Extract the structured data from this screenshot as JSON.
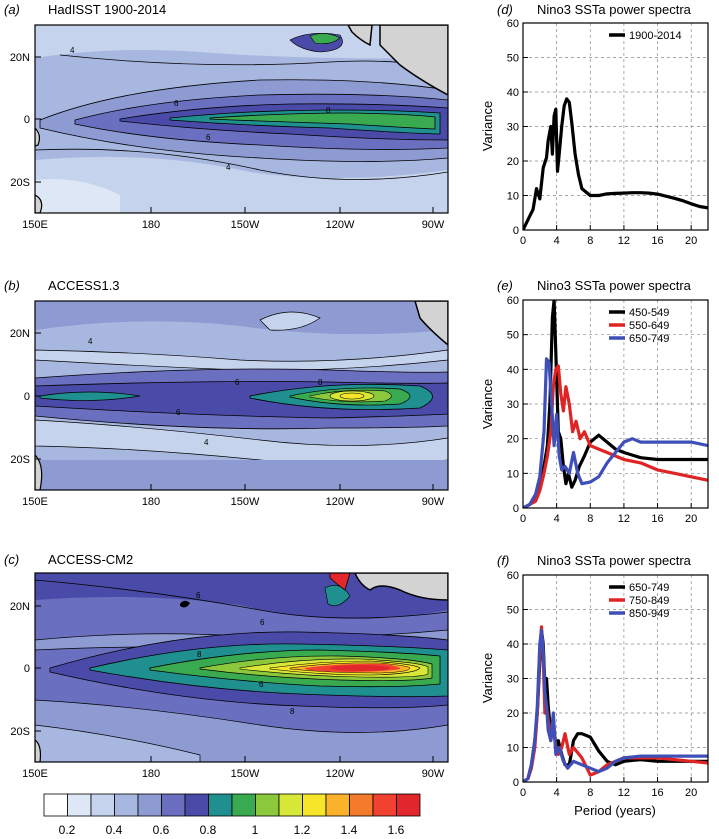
{
  "maps": [
    {
      "panel": "(a)",
      "title": "HadISST 1900-2014",
      "lon_ticks": [
        "150E",
        "180",
        "150W",
        "120W",
        "90W"
      ],
      "lat_ticks": [
        "20N",
        "0",
        "20S"
      ],
      "contour_labels": [
        "6",
        "6",
        "8",
        "4",
        "4"
      ],
      "style": "weak"
    },
    {
      "panel": "(b)",
      "title": "ACCESS1.3",
      "lon_ticks": [
        "150E",
        "180",
        "150W",
        "120W",
        "90W"
      ],
      "lat_ticks": [
        "20N",
        "0",
        "20S"
      ],
      "contour_labels": [
        "4",
        "6",
        "6",
        "8",
        "4"
      ],
      "style": "medium"
    },
    {
      "panel": "(c)",
      "title": "ACCESS-CM2",
      "lon_ticks": [
        "150E",
        "180",
        "150W",
        "120W",
        "90W"
      ],
      "lat_ticks": [
        "20N",
        "0",
        "20S"
      ],
      "contour_labels": [
        "6",
        "8",
        "6",
        "6",
        "8"
      ],
      "style": "strong"
    }
  ],
  "colorbar": {
    "tick_labels": [
      "0.2",
      "0.4",
      "0.6",
      "0.8",
      "1",
      "1.2",
      "1.4",
      "1.6"
    ],
    "colors": [
      "#ffffff",
      "#dde7f5",
      "#c5d3ec",
      "#a8b7e0",
      "#8e9ad2",
      "#6a70bf",
      "#4a4aa8",
      "#1f8f8f",
      "#3aaa50",
      "#8cc83c",
      "#d8e838",
      "#f6e528",
      "#f9b22a",
      "#f47a2c",
      "#f14130",
      "#e2272c"
    ]
  },
  "chart_data": [
    {
      "type": "line",
      "panel": "(d)",
      "title": "Nino3 SSTa power spectra",
      "xlabel": "",
      "ylabel": "Variance",
      "xlim": [
        0,
        22
      ],
      "ylim": [
        0,
        60
      ],
      "x_ticks": [
        "0",
        "4",
        "8",
        "12",
        "16",
        "20"
      ],
      "y_ticks": [
        "0",
        "10",
        "20",
        "30",
        "40",
        "50",
        "60"
      ],
      "legend_position": "top-right",
      "series": [
        {
          "name": "1900-2014",
          "color": "#000000",
          "x": [
            0,
            0.8,
            1.2,
            1.6,
            2.0,
            2.4,
            2.8,
            3.0,
            3.3,
            3.5,
            3.7,
            3.9,
            4.1,
            4.3,
            4.6,
            4.9,
            5.2,
            5.5,
            5.8,
            6.2,
            6.6,
            7.0,
            7.5,
            8.0,
            9,
            10,
            11,
            12,
            13,
            14,
            15,
            16,
            17,
            18,
            19,
            20,
            21,
            22
          ],
          "y": [
            0,
            4,
            6,
            12,
            9,
            18,
            21,
            26,
            30,
            22,
            33,
            35,
            17,
            22,
            30,
            36,
            38,
            37,
            31,
            22,
            16,
            12,
            11,
            10,
            10,
            10.5,
            10.6,
            10.7,
            10.8,
            10.8,
            10.7,
            10.4,
            9.8,
            9.2,
            8.5,
            7.6,
            6.8,
            6.4
          ]
        }
      ]
    },
    {
      "type": "line",
      "panel": "(e)",
      "title": "Nino3 SSTa power spectra",
      "xlabel": "",
      "ylabel": "Variance",
      "xlim": [
        0,
        22
      ],
      "ylim": [
        0,
        60
      ],
      "x_ticks": [
        "0",
        "4",
        "8",
        "12",
        "16",
        "20"
      ],
      "y_ticks": [
        "0",
        "10",
        "20",
        "30",
        "40",
        "50",
        "60"
      ],
      "legend_position": "top-right",
      "series": [
        {
          "name": "450-549",
          "color": "#000000",
          "x": [
            0,
            0.8,
            1.5,
            2.0,
            2.5,
            2.9,
            3.2,
            3.5,
            3.7,
            3.9,
            4.2,
            4.5,
            4.8,
            5.1,
            5.4,
            5.8,
            6.2,
            6.7,
            7.3,
            8,
            9,
            10,
            11,
            12,
            14,
            16,
            18,
            20,
            22
          ],
          "y": [
            0,
            1,
            3,
            7,
            12,
            18,
            30,
            55,
            60,
            45,
            22,
            20,
            12,
            7,
            10,
            6,
            8,
            12,
            15,
            19,
            21,
            19,
            17,
            16,
            14.5,
            14,
            14,
            14,
            14
          ]
        },
        {
          "name": "550-649",
          "color": "#e02424",
          "x": [
            0,
            0.8,
            1.5,
            2.0,
            2.5,
            2.9,
            3.3,
            3.6,
            3.9,
            4.2,
            4.5,
            4.8,
            5.1,
            5.5,
            5.9,
            6.3,
            6.8,
            7.3,
            8,
            9,
            10,
            11,
            12,
            14,
            16,
            18,
            20,
            22
          ],
          "y": [
            0,
            1,
            2,
            5,
            10,
            15,
            22,
            35,
            40,
            41,
            33,
            28,
            35,
            30,
            22,
            25,
            20,
            22,
            18,
            17,
            16,
            15,
            14,
            13,
            11,
            10,
            9,
            8
          ]
        },
        {
          "name": "650-749",
          "color": "#3f4fb8",
          "x": [
            0,
            0.8,
            1.5,
            2.0,
            2.5,
            2.8,
            3.1,
            3.4,
            3.7,
            4.0,
            4.3,
            4.6,
            5.0,
            5.5,
            6.0,
            6.5,
            7,
            8,
            9,
            10,
            11,
            12,
            13,
            14,
            16,
            18,
            20,
            22
          ],
          "y": [
            0,
            1,
            4,
            9,
            22,
            43,
            42,
            30,
            18,
            27,
            15,
            11,
            12,
            10,
            16,
            10,
            7,
            7.5,
            9,
            13,
            16,
            19,
            20,
            19,
            19,
            19,
            19,
            18
          ]
        }
      ]
    },
    {
      "type": "line",
      "panel": "(f)",
      "title": "Nino3 SSTa power spectra",
      "xlabel": "Period (years)",
      "ylabel": "Variance",
      "xlim": [
        0,
        22
      ],
      "ylim": [
        0,
        60
      ],
      "x_ticks": [
        "0",
        "4",
        "8",
        "12",
        "16",
        "20"
      ],
      "y_ticks": [
        "0",
        "10",
        "20",
        "30",
        "40",
        "50",
        "60"
      ],
      "legend_position": "top-right",
      "series": [
        {
          "name": "650-749",
          "color": "#000000",
          "x": [
            0,
            0.6,
            1.0,
            1.4,
            1.7,
            2.0,
            2.2,
            2.4,
            2.6,
            2.8,
            3.0,
            3.3,
            3.6,
            3.9,
            4.2,
            4.6,
            5.0,
            5.5,
            6.0,
            6.5,
            7.0,
            8.0,
            9.0,
            10,
            11,
            12,
            14,
            16,
            18,
            20,
            22
          ],
          "y": [
            0,
            1,
            5,
            12,
            20,
            35,
            44,
            40,
            28,
            30,
            22,
            14,
            18,
            10,
            12,
            8,
            5,
            5,
            12,
            14,
            14,
            13,
            9,
            6,
            5,
            6,
            6.5,
            6,
            6,
            6,
            6
          ]
        },
        {
          "name": "750-849",
          "color": "#e02424",
          "x": [
            0,
            0.6,
            1.0,
            1.4,
            1.7,
            2.0,
            2.2,
            2.4,
            2.6,
            2.8,
            3.0,
            3.3,
            3.6,
            3.9,
            4.2,
            4.6,
            5.0,
            5.5,
            6.0,
            7.0,
            8,
            9,
            10,
            11,
            12,
            14,
            16,
            18,
            20,
            22
          ],
          "y": [
            0,
            1,
            4,
            10,
            20,
            38,
            45,
            36,
            20,
            22,
            18,
            12,
            16,
            10,
            8,
            10,
            14,
            8,
            10,
            7,
            2,
            3,
            5,
            6,
            7,
            7,
            7,
            6.5,
            6,
            5.5
          ]
        },
        {
          "name": "850-949",
          "color": "#3f4fb8",
          "x": [
            0,
            0.6,
            1.0,
            1.4,
            1.7,
            2.0,
            2.2,
            2.4,
            2.6,
            2.8,
            3.0,
            3.3,
            3.6,
            3.9,
            4.3,
            4.8,
            5.3,
            6.0,
            7,
            8,
            9,
            10,
            11,
            12,
            14,
            16,
            18,
            20,
            22
          ],
          "y": [
            0,
            1,
            5,
            12,
            22,
            40,
            44,
            38,
            26,
            22,
            15,
            12,
            20,
            8,
            10,
            6,
            4,
            6,
            5,
            4,
            3,
            4,
            6,
            7,
            7.5,
            7.5,
            7.5,
            7.5,
            7.5
          ]
        }
      ]
    }
  ]
}
